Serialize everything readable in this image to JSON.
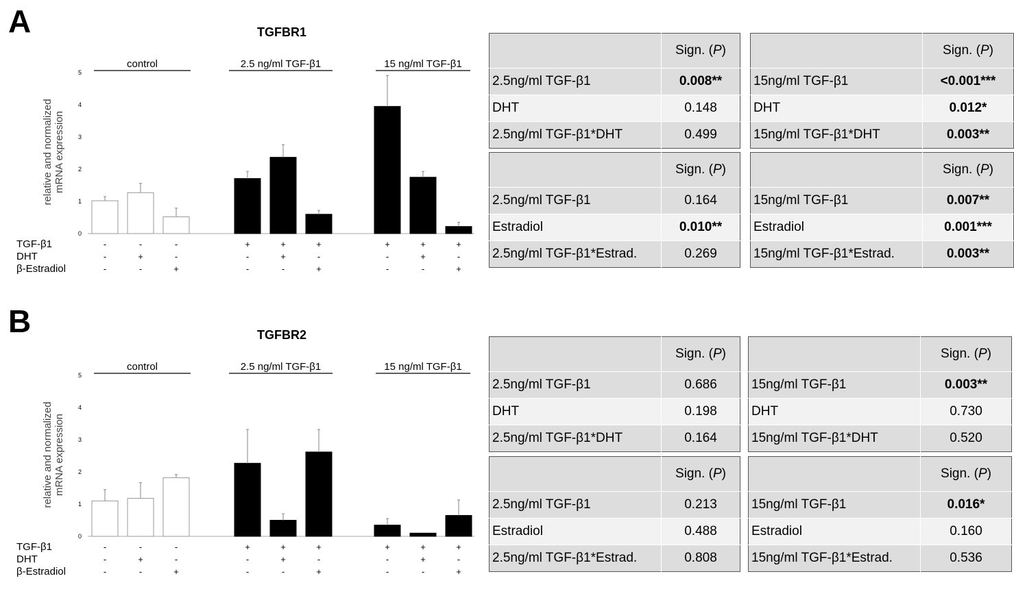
{
  "panels": [
    {
      "letter": "A",
      "chart_data": {
        "type": "bar",
        "title": "TGFBR1",
        "ylabel": "relative and normalized mRNA expression",
        "ylim": [
          0,
          5
        ],
        "yticks": [
          "0",
          "1",
          "2",
          "3",
          "4",
          "5"
        ],
        "groups": [
          "control",
          "2.5 ng/ml TGF-β1",
          "15 ng/ml TGF-β1"
        ],
        "values": [
          1.02,
          1.27,
          0.52,
          1.71,
          2.37,
          0.6,
          3.95,
          1.75,
          0.22
        ],
        "errors": [
          0.13,
          0.29,
          0.27,
          0.22,
          0.39,
          0.12,
          0.96,
          0.18,
          0.13
        ],
        "bar_colors": [
          "#ffffff",
          "#ffffff",
          "#ffffff",
          "#000000",
          "#000000",
          "#000000",
          "#000000",
          "#000000",
          "#000000"
        ],
        "row_labels": [
          "TGF-β1",
          "DHT",
          "β-Estradiol"
        ],
        "treatment_rows": [
          [
            "-",
            "-",
            "-",
            "+",
            "+",
            "+",
            "+",
            "+",
            "+"
          ],
          [
            "-",
            "+",
            "-",
            "-",
            "+",
            "-",
            "-",
            "+",
            "-"
          ],
          [
            "-",
            "-",
            "+",
            "-",
            "-",
            "+",
            "-",
            "-",
            "+"
          ]
        ]
      },
      "tables": [
        {
          "header": "Sign. (P)",
          "rows": [
            {
              "label": "2.5ng/ml TGF-β1",
              "value": "0.008**",
              "bold": true
            },
            {
              "label": "DHT",
              "value": "0.148",
              "bold": false
            },
            {
              "label": "2.5ng/ml TGF-β1*DHT",
              "value": "0.499",
              "bold": false
            }
          ]
        },
        {
          "header": "Sign. (P)",
          "rows": [
            {
              "label": "15ng/ml TGF-β1",
              "value": "<0.001***",
              "bold": true
            },
            {
              "label": "DHT",
              "value": "0.012*",
              "bold": true
            },
            {
              "label": "15ng/ml TGF-β1*DHT",
              "value": "0.003**",
              "bold": true
            }
          ]
        },
        {
          "header": "Sign. (P)",
          "rows": [
            {
              "label": "2.5ng/ml TGF-β1",
              "value": "0.164",
              "bold": false
            },
            {
              "label": "Estradiol",
              "value": "0.010**",
              "bold": true
            },
            {
              "label": "2.5ng/ml TGF-β1*Estrad.",
              "value": "0.269",
              "bold": false
            }
          ]
        },
        {
          "header": "Sign. (P)",
          "rows": [
            {
              "label": "15ng/ml TGF-β1",
              "value": "0.007**",
              "bold": true
            },
            {
              "label": "Estradiol",
              "value": "0.001***",
              "bold": true
            },
            {
              "label": "15ng/ml TGF-β1*Estrad.",
              "value": "0.003**",
              "bold": true
            }
          ]
        }
      ]
    },
    {
      "letter": "B",
      "chart_data": {
        "type": "bar",
        "title": "TGFBR2",
        "ylabel": "relative and normalized mRNA expression",
        "ylim": [
          0,
          5
        ],
        "yticks": [
          "0",
          "1",
          "2",
          "3",
          "4",
          "5"
        ],
        "groups": [
          "control",
          "2.5 ng/ml TGF-β1",
          "15 ng/ml TGF-β1"
        ],
        "values": [
          1.1,
          1.18,
          1.82,
          2.27,
          0.5,
          2.62,
          0.35,
          0.1,
          0.65
        ],
        "errors": [
          0.35,
          0.49,
          0.1,
          1.05,
          0.2,
          0.7,
          0.2,
          0.0,
          0.48
        ],
        "bar_colors": [
          "#ffffff",
          "#ffffff",
          "#ffffff",
          "#000000",
          "#000000",
          "#000000",
          "#000000",
          "#000000",
          "#000000"
        ],
        "row_labels": [
          "TGF-β1",
          "DHT",
          "β-Estradiol"
        ],
        "treatment_rows": [
          [
            "-",
            "-",
            "-",
            "+",
            "+",
            "+",
            "+",
            "+",
            "+"
          ],
          [
            "-",
            "+",
            "-",
            "-",
            "+",
            "-",
            "-",
            "+",
            "-"
          ],
          [
            "-",
            "-",
            "+",
            "-",
            "-",
            "+",
            "-",
            "-",
            "+"
          ]
        ]
      },
      "tables": [
        {
          "header": "Sign. (P)",
          "rows": [
            {
              "label": "2.5ng/ml TGF-β1",
              "value": "0.686",
              "bold": false
            },
            {
              "label": "DHT",
              "value": "0.198",
              "bold": false
            },
            {
              "label": "2.5ng/ml TGF-β1*DHT",
              "value": "0.164",
              "bold": false
            }
          ]
        },
        {
          "header": "Sign. (P)",
          "rows": [
            {
              "label": "15ng/ml TGF-β1",
              "value": "0.003**",
              "bold": true
            },
            {
              "label": "DHT",
              "value": "0.730",
              "bold": false
            },
            {
              "label": "15ng/ml TGF-β1*DHT",
              "value": "0.520",
              "bold": false
            }
          ]
        },
        {
          "header": "Sign. (P)",
          "rows": [
            {
              "label": "2.5ng/ml TGF-β1",
              "value": "0.213",
              "bold": false
            },
            {
              "label": "Estradiol",
              "value": "0.488",
              "bold": false
            },
            {
              "label": "2.5ng/ml TGF-β1*Estrad.",
              "value": "0.808",
              "bold": false
            }
          ]
        },
        {
          "header": "Sign. (P)",
          "rows": [
            {
              "label": "15ng/ml TGF-β1",
              "value": "0.016*",
              "bold": true
            },
            {
              "label": "Estradiol",
              "value": "0.160",
              "bold": false
            },
            {
              "label": "15ng/ml TGF-β1*Estrad.",
              "value": "0.536",
              "bold": false
            }
          ]
        }
      ]
    }
  ]
}
